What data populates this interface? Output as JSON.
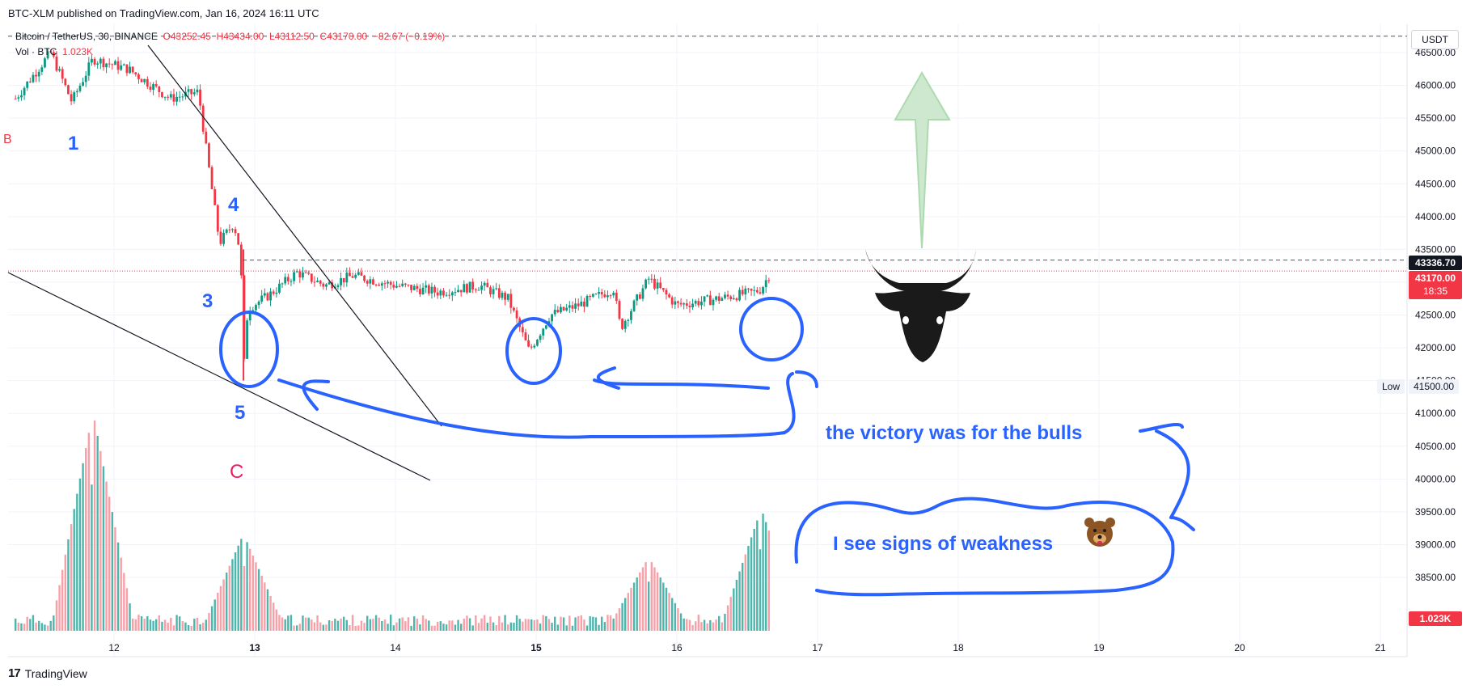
{
  "header": {
    "published": "BTC-XLM published on TradingView.com, Jan 16, 2024 16:11 UTC"
  },
  "legend": {
    "symbol": "Bitcoin / TetherUS, 30, BINANCE",
    "open": "O43252.45",
    "high": "H43434.00",
    "low": "L43112.50",
    "close": "C43170.00",
    "change": "−82.67 (−0.19%)",
    "vol_label": "Vol · BTC",
    "vol_value": "1.023K"
  },
  "currency": "USDT",
  "price_tags": {
    "level": "43336.70",
    "last": "43170.00",
    "countdown": "18:35",
    "volume": "1.023K"
  },
  "low_marker": {
    "label": "Low",
    "value": "41500.00"
  },
  "waves": {
    "w1": "1",
    "w3": "3",
    "w4": "4",
    "w5": "5",
    "wC": "C",
    "wB": "B"
  },
  "notes": {
    "bulls": "the victory was for the bulls",
    "weakness": "I see signs of weakness"
  },
  "icons": {
    "bull": "bull-head-icon",
    "bear": "bear-face-icon",
    "arrow": "up-arrow-icon"
  },
  "colors": {
    "up": "#089981",
    "down": "#f23645",
    "annotation": "#2962ff",
    "wave_c": "#e91e63"
  },
  "footer": {
    "brand": "TradingView"
  },
  "chart_data": {
    "type": "candlestick",
    "symbol": "Bitcoin / TetherUS",
    "timeframe": "30",
    "exchange": "BINANCE",
    "x_ticks": [
      "12",
      "13",
      "14",
      "15",
      "16",
      "17",
      "18",
      "19",
      "20",
      "21"
    ],
    "y_ticks": [
      38500,
      39000,
      39500,
      40000,
      40500,
      41000,
      41500,
      42000,
      42500,
      43000,
      43500,
      44000,
      44500,
      45000,
      45500,
      46000,
      46500
    ],
    "ylim": [
      38250,
      46800
    ],
    "last_price": 43170.0,
    "level_line": 43336.7,
    "top_dashed_line": 46750,
    "low": 41500.0,
    "price_path": [
      [
        11.3,
        45800
      ],
      [
        11.55,
        46500
      ],
      [
        11.7,
        45750
      ],
      [
        11.85,
        46400
      ],
      [
        12.1,
        46250
      ],
      [
        12.4,
        45800
      ],
      [
        12.6,
        45900
      ],
      [
        12.65,
        45100
      ],
      [
        12.75,
        43600
      ],
      [
        12.85,
        43900
      ],
      [
        12.9,
        43450
      ],
      [
        12.92,
        41600
      ],
      [
        12.95,
        42600
      ],
      [
        13.1,
        42800
      ],
      [
        13.3,
        43150
      ],
      [
        13.5,
        42950
      ],
      [
        13.7,
        43100
      ],
      [
        14.0,
        42950
      ],
      [
        14.3,
        42850
      ],
      [
        14.6,
        42950
      ],
      [
        14.8,
        42750
      ],
      [
        14.95,
        41950
      ],
      [
        15.1,
        42500
      ],
      [
        15.3,
        42650
      ],
      [
        15.55,
        42900
      ],
      [
        15.6,
        42300
      ],
      [
        15.8,
        43050
      ],
      [
        16.0,
        42650
      ],
      [
        16.3,
        42750
      ],
      [
        16.55,
        42850
      ],
      [
        16.6,
        42900
      ],
      [
        16.67,
        43170
      ]
    ],
    "volume_peaks": [
      [
        11.85,
        11.3,
        "up"
      ],
      [
        12.92,
        5.0,
        "down"
      ],
      [
        15.8,
        3.8,
        "down"
      ],
      [
        16.6,
        6.3,
        "down"
      ]
    ],
    "volume_unit": "K"
  }
}
